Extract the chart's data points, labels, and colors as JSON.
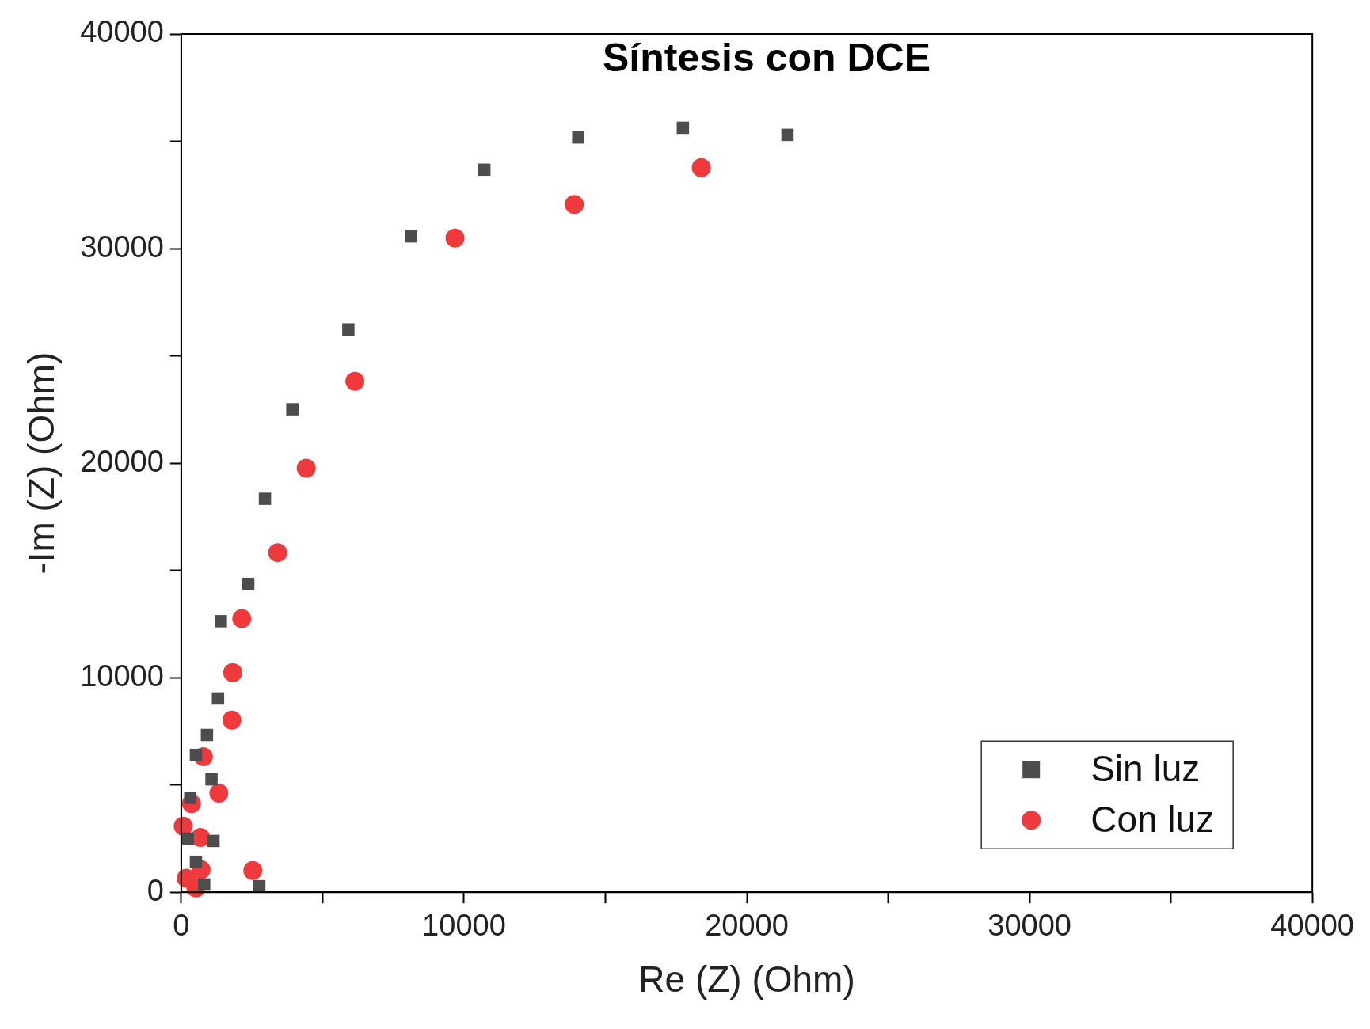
{
  "chart_data": {
    "type": "scatter",
    "title": "Síntesis con DCE",
    "xlabel": "Re (Z) (Ohm)",
    "ylabel": "-Im (Z) (Ohm)",
    "xlim": [
      0,
      40000
    ],
    "ylim": [
      0,
      40000
    ],
    "xticks": [
      0,
      {
        "value": 5000,
        "label": null
      },
      10000,
      {
        "value": 15000,
        "label": null
      },
      20000,
      {
        "value": 25000,
        "label": null
      },
      30000,
      {
        "value": 35000,
        "label": null
      },
      40000
    ],
    "yticks": [
      0,
      {
        "value": 5000,
        "label": null
      },
      10000,
      {
        "value": 15000,
        "label": null
      },
      20000,
      {
        "value": 25000,
        "label": null
      },
      30000,
      {
        "value": 35000,
        "label": null
      },
      40000
    ],
    "grid": false,
    "legend": "bottom right",
    "series": [
      {
        "name": "Sin luz",
        "color": "#4d4d4d",
        "marker": "square",
        "x": [
          21440,
          17740,
          14040,
          10720,
          8120,
          5910,
          3930,
          2960,
          2370,
          1400,
          1300,
          910,
          520,
          1070,
          320,
          1140,
          230,
          520,
          810,
          2760
        ],
        "values": [
          35300,
          35630,
          35180,
          33680,
          30570,
          26230,
          22510,
          18340,
          14370,
          12630,
          9030,
          7330,
          6400,
          5260,
          4400,
          2390,
          2500,
          1420,
          360,
          280
        ]
      },
      {
        "name": "Con luz",
        "color": "#ef3a3d",
        "marker": "circle",
        "x": [
          18390,
          13900,
          9680,
          6140,
          4420,
          3410,
          2140,
          1820,
          1790,
          780,
          1330,
          360,
          680,
          70,
          2530,
          700,
          180,
          520
        ],
        "values": [
          33770,
          32060,
          30490,
          23810,
          19760,
          15830,
          12750,
          10240,
          8020,
          6320,
          4620,
          4130,
          2550,
          3080,
          1010,
          1050,
          650,
          200
        ]
      }
    ]
  }
}
